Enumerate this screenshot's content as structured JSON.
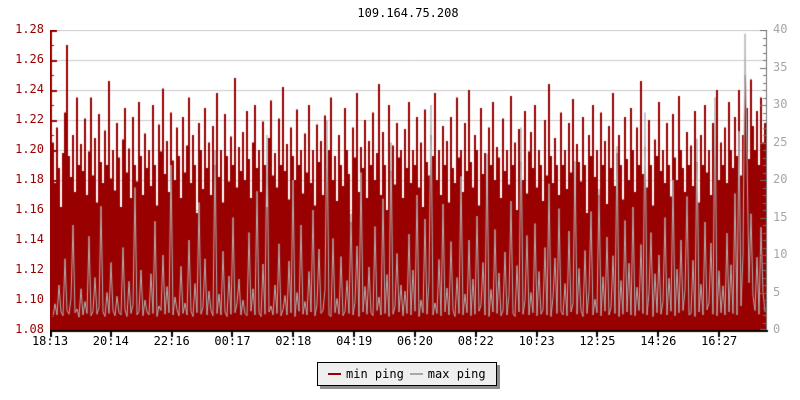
{
  "page": {
    "background": "#ffffff"
  },
  "chart_data": {
    "type": "area",
    "title": "109.164.75.208",
    "grid": {
      "show": true,
      "color": "#cbcbcb"
    },
    "axes": {
      "left_color": "#990000",
      "right_color": "#707070",
      "bottom_color": "#000000"
    },
    "x_axis": {
      "tick_labels": [
        "18:13",
        "20:14",
        "22:16",
        "00:17",
        "02:18",
        "04:19",
        "06:20",
        "08:22",
        "10:23",
        "12:25",
        "14:26",
        "16:27"
      ],
      "label_color": "#000000"
    },
    "y_left": {
      "min": 1.08,
      "max": 1.28,
      "tick_step": 0.02,
      "color": "#990000",
      "tick_labels": [
        "1.28",
        "1.26",
        "1.24",
        "1.22",
        "1.20",
        "1.18",
        "1.16",
        "1.14",
        "1.12",
        "1.10",
        "1.08"
      ]
    },
    "y_right": {
      "min": 0,
      "max": 40,
      "tick_step": 5,
      "color": "#a6a6a6",
      "tick_labels": [
        "40",
        "35",
        "30",
        "25",
        "20",
        "15",
        "10",
        "5",
        "0"
      ]
    },
    "legend": {
      "position": "bottom",
      "items": [
        {
          "label": "min ping",
          "color": "#990000"
        },
        {
          "label": "max ping",
          "color": "#a8a8a8"
        }
      ]
    },
    "series": [
      {
        "name": "min ping",
        "type": "area",
        "axis": "left",
        "color": "#990000",
        "values": [
          1.19,
          1.205,
          1.178,
          1.215,
          1.188,
          1.162,
          1.198,
          1.225,
          1.27,
          1.196,
          1.182,
          1.21,
          1.172,
          1.235,
          1.19,
          1.204,
          1.186,
          1.221,
          1.17,
          1.199,
          1.235,
          1.183,
          1.208,
          1.165,
          1.224,
          1.192,
          1.178,
          1.213,
          1.19,
          1.246,
          1.181,
          1.2,
          1.173,
          1.218,
          1.195,
          1.162,
          1.207,
          1.228,
          1.185,
          1.201,
          1.168,
          1.222,
          1.19,
          1.179,
          1.232,
          1.196,
          1.17,
          1.211,
          1.188,
          1.2,
          1.176,
          1.23,
          1.19,
          1.163,
          1.217,
          1.199,
          1.241,
          1.184,
          1.206,
          1.172,
          1.225,
          1.193,
          1.18,
          1.215,
          1.196,
          1.168,
          1.222,
          1.185,
          1.203,
          1.235,
          1.178,
          1.21,
          1.19,
          1.158,
          1.218,
          1.2,
          1.174,
          1.228,
          1.188,
          1.205,
          1.17,
          1.216,
          1.19,
          1.238,
          1.182,
          1.2,
          1.165,
          1.224,
          1.196,
          1.179,
          1.209,
          1.19,
          1.248,
          1.175,
          1.202,
          1.186,
          1.212,
          1.18,
          1.226,
          1.194,
          1.168,
          1.205,
          1.23,
          1.188,
          1.2,
          1.172,
          1.219,
          1.19,
          1.162,
          1.208,
          1.233,
          1.183,
          1.198,
          1.175,
          1.221,
          1.19,
          1.242,
          1.186,
          1.204,
          1.167,
          1.215,
          1.196,
          1.18,
          1.227,
          1.19,
          1.2,
          1.171,
          1.211,
          1.185,
          1.23,
          1.178,
          1.2,
          1.163,
          1.217,
          1.192,
          1.206,
          1.17,
          1.223,
          1.188,
          1.2,
          1.235,
          1.18,
          1.196,
          1.166,
          1.21,
          1.19,
          1.176,
          1.228,
          1.2,
          1.184,
          1.152,
          1.215,
          1.195,
          1.238,
          1.172,
          1.202,
          1.188,
          1.22,
          1.168,
          1.206,
          1.19,
          1.225,
          1.18,
          1.198,
          1.244,
          1.17,
          1.212,
          1.19,
          1.16,
          1.23,
          1.186,
          1.203,
          1.177,
          1.218,
          1.195,
          1.2,
          1.168,
          1.214,
          1.188,
          1.232,
          1.178,
          1.2,
          1.19,
          1.222,
          1.175,
          1.205,
          1.162,
          1.227,
          1.192,
          1.183,
          1.21,
          1.196,
          1.238,
          1.18,
          1.2,
          1.17,
          1.216,
          1.19,
          1.206,
          1.165,
          1.222,
          1.188,
          1.178,
          1.235,
          1.195,
          1.2,
          1.172,
          1.218,
          1.186,
          1.24,
          1.192,
          1.175,
          1.21,
          1.2,
          1.163,
          1.228,
          1.184,
          1.198,
          1.17,
          1.215,
          1.19,
          1.232,
          1.18,
          1.202,
          1.195,
          1.168,
          1.221,
          1.186,
          1.2,
          1.177,
          1.236,
          1.19,
          1.205,
          1.16,
          1.214,
          1.192,
          1.18,
          1.226,
          1.171,
          1.199,
          1.212,
          1.188,
          1.23,
          1.175,
          1.2,
          1.19,
          1.166,
          1.22,
          1.183,
          1.244,
          1.196,
          1.178,
          1.208,
          1.19,
          1.17,
          1.225,
          1.19,
          1.2,
          1.174,
          1.218,
          1.185,
          1.234,
          1.168,
          1.204,
          1.192,
          1.179,
          1.222,
          1.19,
          1.158,
          1.21,
          1.196,
          1.23,
          1.182,
          1.2,
          1.17,
          1.225,
          1.19,
          1.206,
          1.164,
          1.216,
          1.188,
          1.238,
          1.176,
          1.198,
          1.21,
          1.19,
          1.167,
          1.222,
          1.194,
          1.18,
          1.228,
          1.2,
          1.172,
          1.215,
          1.19,
          1.246,
          1.184,
          1.202,
          1.175,
          1.22,
          1.19,
          1.163,
          1.207,
          1.196,
          1.232,
          1.186,
          1.2,
          1.178,
          1.218,
          1.19,
          1.169,
          1.224,
          1.195,
          1.18,
          1.236,
          1.2,
          1.188,
          1.172,
          1.212,
          1.19,
          1.203,
          1.176,
          1.226,
          1.192,
          1.165,
          1.21,
          1.19,
          1.23,
          1.185,
          1.2,
          1.17,
          1.218,
          1.196,
          1.24,
          1.18,
          1.205,
          1.19,
          1.215,
          1.178,
          1.232,
          1.2,
          1.188,
          1.222,
          1.196,
          1.24,
          1.183,
          1.21,
          1.25,
          1.228,
          1.194,
          1.247,
          1.216,
          1.2,
          1.226,
          1.19,
          1.235,
          1.205,
          1.218
        ]
      },
      {
        "name": "max ping",
        "type": "line",
        "axis": "right",
        "color": "#b3b3b3",
        "values": [
          2.2,
          1.8,
          3.5,
          2.0,
          6.0,
          2.4,
          1.9,
          9.5,
          2.6,
          2.1,
          4.2,
          14.0,
          2.3,
          2.8,
          1.7,
          5.5,
          2.0,
          3.8,
          2.2,
          12.5,
          1.9,
          2.5,
          7.0,
          2.1,
          3.0,
          16.5,
          2.4,
          1.8,
          5.0,
          2.2,
          9.0,
          2.6,
          1.9,
          4.5,
          2.3,
          2.0,
          11.0,
          2.7,
          1.8,
          6.5,
          2.2,
          3.4,
          19.0,
          2.0,
          2.5,
          8.0,
          1.9,
          4.0,
          2.4,
          2.0,
          7.5,
          2.2,
          14.5,
          1.8,
          3.2,
          2.6,
          10.0,
          2.1,
          5.8,
          2.3,
          22.0,
          2.0,
          4.4,
          2.7,
          1.9,
          8.5,
          2.2,
          3.6,
          2.0,
          12.0,
          2.5,
          1.8,
          6.2,
          2.3,
          17.0,
          2.1,
          3.0,
          9.5,
          2.0,
          5.2,
          2.6,
          1.9,
          24.0,
          2.2,
          4.8,
          2.0,
          10.5,
          2.4,
          1.8,
          7.2,
          2.1,
          15.0,
          2.3,
          3.5,
          6.8,
          2.0,
          4.0,
          2.2,
          1.9,
          13.0,
          2.5,
          5.5,
          2.0,
          18.5,
          2.3,
          1.8,
          8.8,
          2.1,
          26.0,
          2.4,
          3.2,
          2.0,
          6.0,
          2.2,
          11.5,
          1.9,
          2.7,
          4.6,
          2.0,
          9.2,
          2.3,
          20.0,
          1.8,
          5.0,
          2.5,
          14.0,
          2.1,
          3.8,
          2.0,
          7.8,
          2.4,
          16.0,
          1.9,
          3.4,
          10.8,
          2.2,
          2.6,
          5.4,
          28.0,
          2.0,
          1.8,
          12.2,
          2.3,
          4.2,
          2.1,
          9.8,
          1.9,
          2.5,
          6.6,
          2.2,
          15.5,
          2.0,
          3.7,
          11.2,
          1.8,
          21.0,
          2.4,
          5.8,
          2.1,
          8.4,
          2.3,
          1.9,
          13.8,
          2.6,
          4.4,
          2.0,
          17.5,
          2.2,
          7.4,
          1.8,
          25.0,
          2.1,
          3.1,
          10.2,
          2.4,
          6.0,
          1.9,
          5.2,
          2.2,
          12.8,
          2.0,
          8.0,
          2.5,
          18.0,
          1.8,
          4.0,
          2.3,
          14.8,
          2.1,
          6.4,
          30.0,
          2.0,
          3.6,
          2.2,
          9.4,
          1.9,
          16.8,
          2.4,
          5.6,
          2.0,
          11.8,
          2.6,
          1.8,
          7.0,
          2.2,
          20.5,
          2.0,
          4.8,
          2.3,
          12.0,
          1.9,
          6.8,
          2.1,
          15.2,
          2.5,
          3.3,
          9.0,
          2.0,
          23.5,
          1.8,
          5.4,
          2.4,
          13.4,
          2.2,
          7.6,
          1.9,
          2.6,
          10.4,
          2.0,
          4.6,
          17.2,
          2.2,
          1.8,
          8.6,
          2.4,
          27.0,
          2.1,
          3.9,
          12.6,
          2.0,
          5.0,
          2.3,
          14.2,
          1.9,
          7.8,
          2.1,
          2.7,
          11.0,
          2.0,
          19.5,
          1.8,
          4.3,
          9.6,
          2.2,
          16.2,
          2.5,
          2.0,
          6.2,
          1.9,
          13.2,
          2.4,
          3.5,
          22.5,
          2.1,
          8.2,
          2.6,
          1.8,
          10.6,
          2.2,
          5.1,
          15.8,
          2.0,
          4.1,
          2.3,
          18.8,
          1.9,
          7.1,
          2.5,
          12.4,
          2.0,
          3.0,
          9.9,
          2.2,
          24.5,
          1.8,
          6.6,
          2.1,
          14.6,
          2.4,
          8.9,
          2.0,
          16.4,
          1.9,
          5.7,
          2.6,
          11.4,
          2.2,
          29.0,
          2.0,
          4.9,
          13.0,
          1.8,
          7.5,
          2.3,
          10.0,
          2.1,
          3.8,
          15.0,
          2.0,
          6.9,
          2.5,
          20.0,
          1.9,
          8.1,
          2.3,
          12.0,
          2.6,
          5.3,
          17.8,
          2.0,
          2.2,
          9.3,
          1.8,
          25.5,
          2.4,
          6.1,
          2.0,
          14.4,
          2.7,
          3.6,
          11.6,
          2.1,
          31.0,
          1.9,
          7.9,
          2.3,
          5.9,
          2.0,
          12.9,
          2.4,
          8.7,
          2.2,
          18.2,
          2.0,
          26.5,
          3.2,
          10.1,
          39.5,
          23.0,
          6.3,
          15.5,
          4.5,
          2.6,
          9.7,
          2.1,
          13.7,
          5.0,
          2.4
        ]
      }
    ]
  }
}
